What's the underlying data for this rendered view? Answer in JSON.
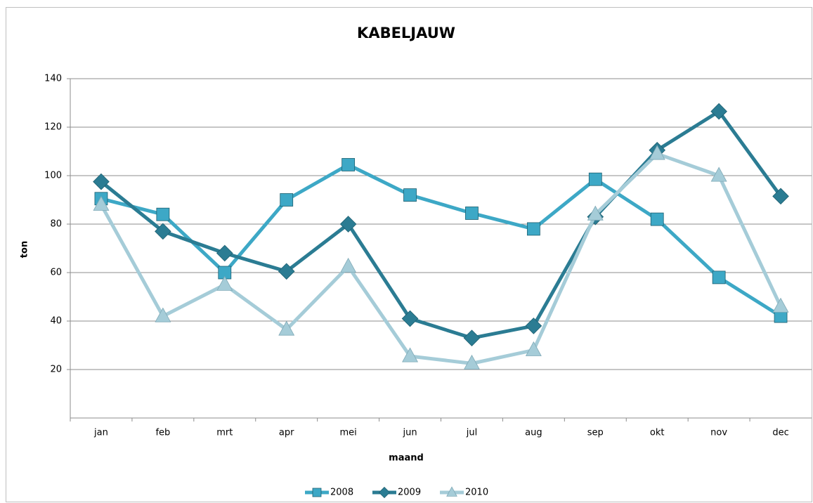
{
  "chart_data": {
    "type": "line",
    "title": "KABELJAUW",
    "x_label": "maand",
    "y_label": "ton",
    "categories": [
      "jan",
      "feb",
      "mrt",
      "apr",
      "mei",
      "jun",
      "jul",
      "aug",
      "sep",
      "okt",
      "nov",
      "dec"
    ],
    "series": [
      {
        "name": "2008",
        "color": "#3da8c6",
        "marker": "square",
        "values": [
          90.5,
          84,
          60,
          90,
          104.5,
          92,
          84.5,
          78,
          98.5,
          82,
          58,
          42
        ]
      },
      {
        "name": "2009",
        "color": "#2b7c93",
        "marker": "diamond",
        "values": [
          97.5,
          77,
          68,
          60.5,
          80,
          41,
          33,
          38,
          83,
          110.5,
          126.5,
          91.5
        ]
      },
      {
        "name": "2010",
        "color": "#a5ccd8",
        "marker": "triangle",
        "values": [
          88,
          42,
          55,
          36.5,
          62.5,
          25.5,
          22.5,
          28,
          84,
          109,
          100,
          46
        ]
      }
    ],
    "ylim": [
      0,
      140
    ],
    "yticks": [
      20,
      40,
      60,
      80,
      100,
      120,
      140
    ],
    "grid": true,
    "legend": "bottom"
  }
}
